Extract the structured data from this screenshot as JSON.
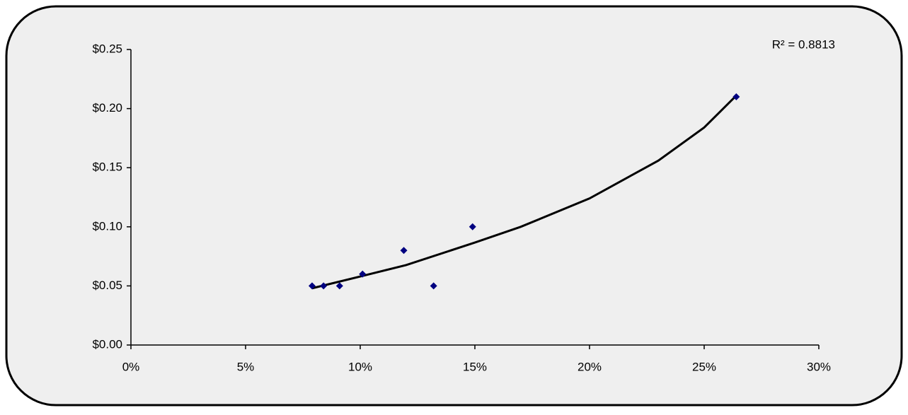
{
  "chart_data": {
    "type": "scatter",
    "x": [
      7.9,
      8.4,
      9.1,
      10.1,
      11.9,
      13.2,
      14.9,
      26.4
    ],
    "values": [
      0.05,
      0.05,
      0.05,
      0.06,
      0.08,
      0.05,
      0.1,
      0.21
    ],
    "color": "#000080",
    "trendline": {
      "x": [
        7.9,
        10,
        12,
        15,
        17,
        20,
        23,
        25,
        26.4
      ],
      "values": [
        0.048,
        0.058,
        0.0676,
        0.0867,
        0.1,
        0.124,
        0.156,
        0.184,
        0.211
      ],
      "color": "#000000"
    },
    "annotation": "R² = 0.8813",
    "xlim": [
      0,
      30
    ],
    "xticks": [
      {
        "value": 0,
        "label": "0%"
      },
      {
        "value": 5,
        "label": "5%"
      },
      {
        "value": 10,
        "label": "10%"
      },
      {
        "value": 15,
        "label": "15%"
      },
      {
        "value": 20,
        "label": "20%"
      },
      {
        "value": 25,
        "label": "25%"
      },
      {
        "value": 30,
        "label": "30%"
      }
    ],
    "ylim": [
      0,
      0.25
    ],
    "yticks": [
      {
        "value": 0,
        "label": "$0.00"
      },
      {
        "value": 0.05,
        "label": "$0.05"
      },
      {
        "value": 0.1,
        "label": "$0.10"
      },
      {
        "value": 0.15,
        "label": "$0.15"
      },
      {
        "value": 0.2,
        "label": "$0.20"
      },
      {
        "value": 0.25,
        "label": "$0.25"
      }
    ]
  }
}
